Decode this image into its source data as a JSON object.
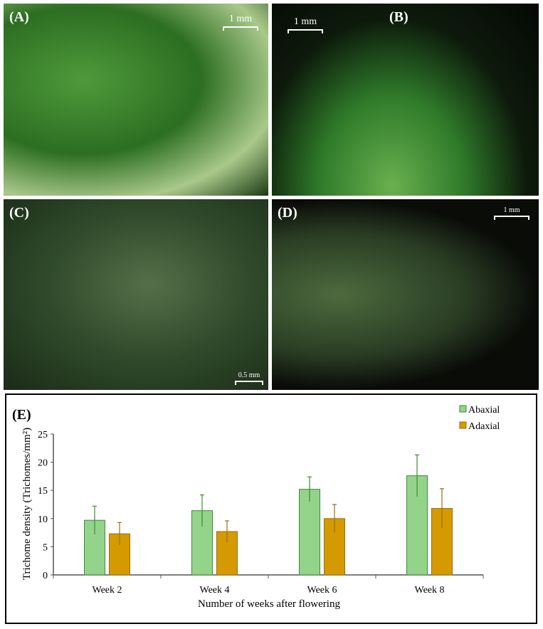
{
  "panels": [
    {
      "label": "(A)",
      "scale": "1 mm"
    },
    {
      "label": "(B)",
      "scale": "1 mm"
    },
    {
      "label": "(C)",
      "scale": "0.5 mm"
    },
    {
      "label": "(D)",
      "scale": "1 mm"
    }
  ],
  "chart_panel_label": "(E)",
  "chart_data": {
    "type": "bar",
    "categories": [
      "Week 2",
      "Week 4",
      "Week 6",
      "Week 8"
    ],
    "series": [
      {
        "name": "Abaxial",
        "color": "#93d38a",
        "edge": "#3f8a3a",
        "values": [
          9.7,
          11.4,
          15.2,
          17.6
        ],
        "error": [
          2.5,
          2.8,
          2.2,
          3.7
        ]
      },
      {
        "name": "Adaxial",
        "color": "#d49a00",
        "edge": "#9a6e10",
        "values": [
          7.3,
          7.7,
          10.0,
          11.8
        ],
        "error": [
          2.0,
          1.9,
          2.5,
          3.5
        ]
      }
    ],
    "xlabel": "Number of weeks after flowering",
    "ylabel": "Trichome density (Trichomes/mm²)",
    "ylim": [
      0,
      25
    ],
    "yticks": [
      0,
      5,
      10,
      15,
      20,
      25
    ],
    "legend": "top-right",
    "grid": false
  }
}
